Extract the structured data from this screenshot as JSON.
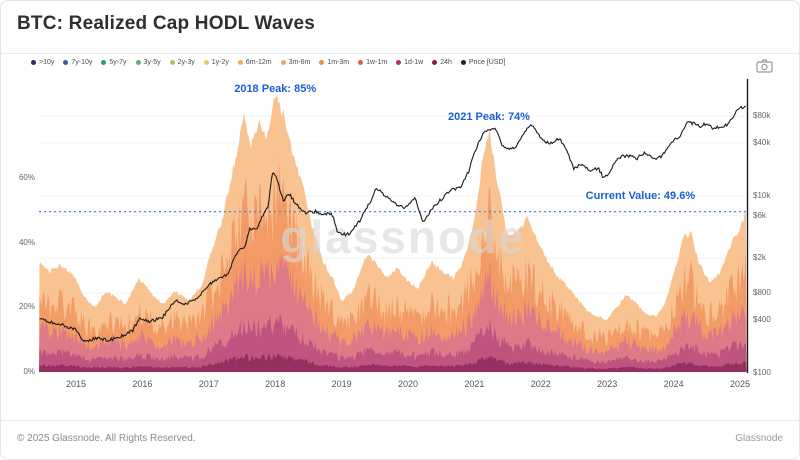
{
  "header": {
    "title": "BTC: Realized Cap HODL Waves"
  },
  "footer": {
    "copyright": "© 2025 Glassnode. All Rights Reserved.",
    "brand": "Glassnode"
  },
  "watermark": "glassnode",
  "legend": {
    "items": [
      {
        "label": ">10y",
        "color": "#35275c"
      },
      {
        "label": "7y-10y",
        "color": "#3e5fa8"
      },
      {
        "label": "5y-7y",
        "color": "#2f9489"
      },
      {
        "label": "3y-5y",
        "color": "#5cb66f"
      },
      {
        "label": "2y-3y",
        "color": "#a5c861"
      },
      {
        "label": "1y-2y",
        "color": "#e3cf57"
      },
      {
        "label": "6m-12m",
        "color": "#eeb04f"
      },
      {
        "label": "3m-6m",
        "color": "#f3a263"
      },
      {
        "label": "1m-3m",
        "color": "#f08a45"
      },
      {
        "label": "1w-1m",
        "color": "#e2574b"
      },
      {
        "label": "1d-1w",
        "color": "#c12f52"
      },
      {
        "label": "24h",
        "color": "#8f1a45"
      },
      {
        "label": "Price [USD]",
        "color": "#222222"
      }
    ]
  },
  "chart_data": {
    "type": "area",
    "subtype": "stacked HODL waves (young coin age bands) + BTC price line on log scale",
    "title": "BTC: Realized Cap HODL Waves",
    "x_axis": {
      "ticks": [
        2015,
        2016,
        2017,
        2018,
        2019,
        2020,
        2021,
        2022,
        2023,
        2024,
        2025
      ]
    },
    "left_axis": {
      "unit": "%",
      "ticks": [
        {
          "label": "0%",
          "value": 0
        },
        {
          "label": "20%",
          "value": 20
        },
        {
          "label": "40%",
          "value": 40
        },
        {
          "label": "60%",
          "value": 60
        }
      ]
    },
    "right_axis": {
      "unit": "USD",
      "scale": "log",
      "ticks": [
        {
          "label": "$80k",
          "value": 80000
        },
        {
          "label": "$40k",
          "value": 40000
        },
        {
          "label": "$10k",
          "value": 10000
        },
        {
          "label": "$6k",
          "value": 6000
        },
        {
          "label": "$2k",
          "value": 2000
        },
        {
          "label": "$800",
          "value": 800
        },
        {
          "label": "$400",
          "value": 400
        },
        {
          "label": "$100",
          "value": 100
        }
      ]
    },
    "annotations": [
      {
        "text": "2018 Peak: 85%",
        "year": 2018.0,
        "pct": 89.4
      },
      {
        "text": "2021 Peak: 74%",
        "year": 2021.22,
        "pct": 80.7
      },
      {
        "text": "Current Value: 49.6%",
        "year": 2023.5,
        "pct": 56.2
      }
    ],
    "current_value_line": {
      "pct": 49.6,
      "color": "#4f83dd",
      "style": "dotted"
    },
    "bands": {
      "names": [
        "3m-6m",
        "1m-3m",
        "1w-1m",
        "1d-1w",
        "24h"
      ],
      "colors": [
        "#f8c291",
        "#f29b66",
        "#dd7a88",
        "#c05380",
        "#93305f"
      ],
      "fractions": [
        1.0,
        0.62,
        0.38,
        0.18,
        0.06
      ]
    },
    "young_supply_total_pct": [
      [
        2014.45,
        34
      ],
      [
        2014.6,
        31
      ],
      [
        2014.75,
        33
      ],
      [
        2014.9,
        31
      ],
      [
        2015.0,
        29
      ],
      [
        2015.12,
        23
      ],
      [
        2015.3,
        20
      ],
      [
        2015.45,
        25
      ],
      [
        2015.6,
        23
      ],
      [
        2015.75,
        21
      ],
      [
        2015.95,
        29
      ],
      [
        2016.1,
        25
      ],
      [
        2016.3,
        21
      ],
      [
        2016.5,
        25
      ],
      [
        2016.7,
        22
      ],
      [
        2016.9,
        27
      ],
      [
        2017.0,
        35
      ],
      [
        2017.2,
        47
      ],
      [
        2017.4,
        66
      ],
      [
        2017.53,
        79
      ],
      [
        2017.63,
        70
      ],
      [
        2017.75,
        78
      ],
      [
        2017.86,
        72
      ],
      [
        2018.0,
        85
      ],
      [
        2018.12,
        80
      ],
      [
        2018.27,
        67
      ],
      [
        2018.42,
        57
      ],
      [
        2018.57,
        44
      ],
      [
        2018.72,
        34
      ],
      [
        2018.87,
        29
      ],
      [
        2019.0,
        22
      ],
      [
        2019.17,
        25
      ],
      [
        2019.39,
        37
      ],
      [
        2019.54,
        33
      ],
      [
        2019.69,
        29
      ],
      [
        2019.84,
        32
      ],
      [
        2020.0,
        28
      ],
      [
        2020.15,
        26
      ],
      [
        2020.35,
        34
      ],
      [
        2020.53,
        31
      ],
      [
        2020.68,
        29
      ],
      [
        2020.83,
        34
      ],
      [
        2021.0,
        47
      ],
      [
        2021.12,
        65
      ],
      [
        2021.23,
        74
      ],
      [
        2021.35,
        58
      ],
      [
        2021.5,
        42
      ],
      [
        2021.65,
        43
      ],
      [
        2021.8,
        48
      ],
      [
        2021.9,
        43
      ],
      [
        2022.0,
        38
      ],
      [
        2022.17,
        32
      ],
      [
        2022.32,
        28
      ],
      [
        2022.5,
        24
      ],
      [
        2022.7,
        19
      ],
      [
        2022.88,
        17
      ],
      [
        2023.0,
        16
      ],
      [
        2023.14,
        20
      ],
      [
        2023.29,
        24
      ],
      [
        2023.44,
        21
      ],
      [
        2023.59,
        18
      ],
      [
        2023.74,
        17
      ],
      [
        2023.88,
        22
      ],
      [
        2024.0,
        30
      ],
      [
        2024.15,
        42
      ],
      [
        2024.26,
        43
      ],
      [
        2024.38,
        34
      ],
      [
        2024.53,
        28
      ],
      [
        2024.68,
        30
      ],
      [
        2024.83,
        38
      ],
      [
        2024.98,
        44
      ],
      [
        2025.1,
        49.6
      ]
    ],
    "price_usd": [
      [
        2014.45,
        420
      ],
      [
        2014.6,
        380
      ],
      [
        2014.8,
        350
      ],
      [
        2015.0,
        305
      ],
      [
        2015.12,
        225
      ],
      [
        2015.3,
        247
      ],
      [
        2015.5,
        235
      ],
      [
        2015.7,
        265
      ],
      [
        2015.85,
        300
      ],
      [
        2015.97,
        420
      ],
      [
        2016.1,
        380
      ],
      [
        2016.3,
        420
      ],
      [
        2016.5,
        650
      ],
      [
        2016.65,
        600
      ],
      [
        2016.85,
        720
      ],
      [
        2017.0,
        990
      ],
      [
        2017.15,
        1180
      ],
      [
        2017.3,
        1300
      ],
      [
        2017.45,
        2500
      ],
      [
        2017.55,
        2700
      ],
      [
        2017.62,
        4300
      ],
      [
        2017.72,
        4100
      ],
      [
        2017.82,
        6200
      ],
      [
        2017.9,
        7800
      ],
      [
        2017.97,
        19000
      ],
      [
        2018.05,
        13500
      ],
      [
        2018.12,
        8500
      ],
      [
        2018.2,
        10800
      ],
      [
        2018.3,
        8300
      ],
      [
        2018.45,
        6400
      ],
      [
        2018.6,
        6700
      ],
      [
        2018.72,
        6300
      ],
      [
        2018.85,
        6400
      ],
      [
        2018.93,
        4000
      ],
      [
        2019.0,
        3700
      ],
      [
        2019.12,
        3700
      ],
      [
        2019.28,
        5300
      ],
      [
        2019.45,
        8800
      ],
      [
        2019.52,
        12500
      ],
      [
        2019.65,
        10200
      ],
      [
        2019.8,
        8300
      ],
      [
        2019.95,
        7200
      ],
      [
        2020.1,
        9400
      ],
      [
        2020.22,
        5000
      ],
      [
        2020.35,
        6900
      ],
      [
        2020.5,
        9200
      ],
      [
        2020.65,
        11500
      ],
      [
        2020.8,
        13000
      ],
      [
        2020.92,
        19000
      ],
      [
        2021.02,
        33000
      ],
      [
        2021.12,
        48000
      ],
      [
        2021.22,
        57000
      ],
      [
        2021.3,
        59000
      ],
      [
        2021.42,
        37000
      ],
      [
        2021.52,
        33000
      ],
      [
        2021.62,
        35000
      ],
      [
        2021.72,
        47000
      ],
      [
        2021.85,
        65000
      ],
      [
        2021.95,
        50000
      ],
      [
        2022.05,
        42000
      ],
      [
        2022.15,
        39000
      ],
      [
        2022.28,
        45000
      ],
      [
        2022.4,
        31000
      ],
      [
        2022.5,
        20000
      ],
      [
        2022.62,
        23000
      ],
      [
        2022.75,
        19500
      ],
      [
        2022.87,
        20500
      ],
      [
        2022.93,
        16500
      ],
      [
        2023.0,
        16800
      ],
      [
        2023.1,
        23000
      ],
      [
        2023.22,
        28000
      ],
      [
        2023.35,
        28000
      ],
      [
        2023.45,
        26500
      ],
      [
        2023.55,
        30500
      ],
      [
        2023.65,
        29500
      ],
      [
        2023.72,
        26000
      ],
      [
        2023.82,
        28000
      ],
      [
        2023.92,
        36000
      ],
      [
        2024.02,
        43000
      ],
      [
        2024.12,
        49000
      ],
      [
        2024.2,
        68000
      ],
      [
        2024.3,
        66000
      ],
      [
        2024.4,
        61000
      ],
      [
        2024.5,
        66000
      ],
      [
        2024.6,
        57000
      ],
      [
        2024.7,
        61000
      ],
      [
        2024.82,
        64000
      ],
      [
        2024.9,
        78000
      ],
      [
        2024.97,
        99000
      ],
      [
        2025.1,
        102000
      ]
    ]
  }
}
